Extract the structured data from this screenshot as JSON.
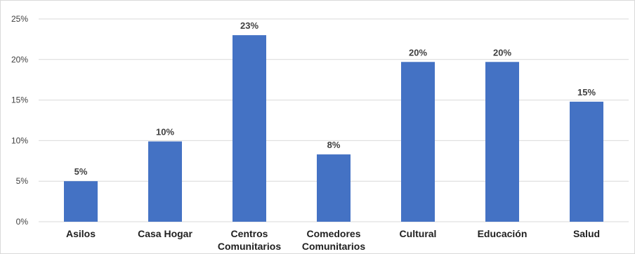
{
  "chart_data": {
    "type": "bar",
    "title": "",
    "xlabel": "",
    "ylabel": "",
    "categories": [
      "Asilos",
      "Casa Hogar",
      "Centros Comunitarios",
      "Comedores Comunitarios",
      "Cultural",
      "Educación",
      "Salud"
    ],
    "category_lines": [
      [
        "Asilos"
      ],
      [
        "Casa Hogar"
      ],
      [
        "Centros",
        "Comunitarios"
      ],
      [
        "Comedores",
        "Comunitarios"
      ],
      [
        "Cultural"
      ],
      [
        "Educación"
      ],
      [
        "Salud"
      ]
    ],
    "values": [
      5,
      10,
      23,
      8,
      20,
      20,
      15
    ],
    "plotted_values": [
      5.0,
      9.9,
      23.0,
      8.3,
      19.7,
      19.7,
      14.8
    ],
    "data_labels": [
      "5%",
      "10%",
      "23%",
      "8%",
      "20%",
      "20%",
      "15%"
    ],
    "ylim": [
      0,
      25
    ],
    "yticks": [
      0,
      5,
      10,
      15,
      20,
      25
    ],
    "ytick_labels": [
      "0%",
      "5%",
      "10%",
      "15%",
      "20%",
      "25%"
    ],
    "grid": true,
    "legend": "none",
    "bar_color": "#4472c4",
    "grid_color": "#d9d9d9"
  }
}
